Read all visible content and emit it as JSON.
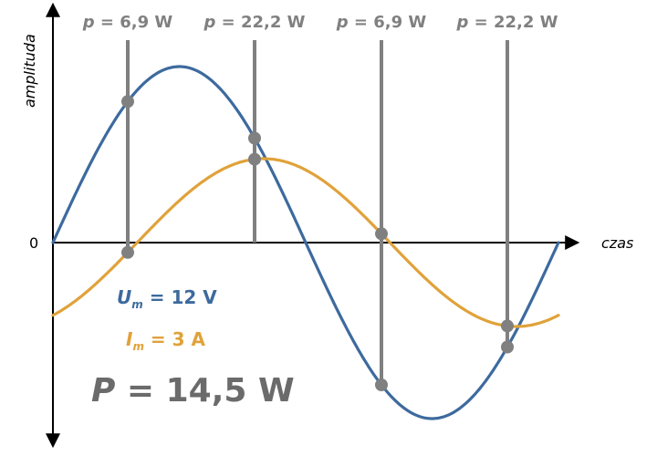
{
  "axes": {
    "y_label": "amplituda",
    "x_label": "czas",
    "origin_label": "0"
  },
  "markers": [
    {
      "p_symbol": "p",
      "eq_value": " = 6,9 W"
    },
    {
      "p_symbol": "p",
      "eq_value": " = 22,2 W"
    },
    {
      "p_symbol": "p",
      "eq_value": " = 6,9 W"
    },
    {
      "p_symbol": "p",
      "eq_value": " = 22,2 W"
    }
  ],
  "voltage": {
    "symbol": "U",
    "subscript": "m",
    "value_text": " = 12 V",
    "color": "#3d6a9e"
  },
  "current": {
    "symbol": "I",
    "subscript": "m",
    "value_text": " = 3 A",
    "color": "#e0a23a"
  },
  "power": {
    "symbol": "P",
    "value_text": " = 14,5 W",
    "color": "#6b6b6b"
  },
  "marker_color": "#808080"
}
